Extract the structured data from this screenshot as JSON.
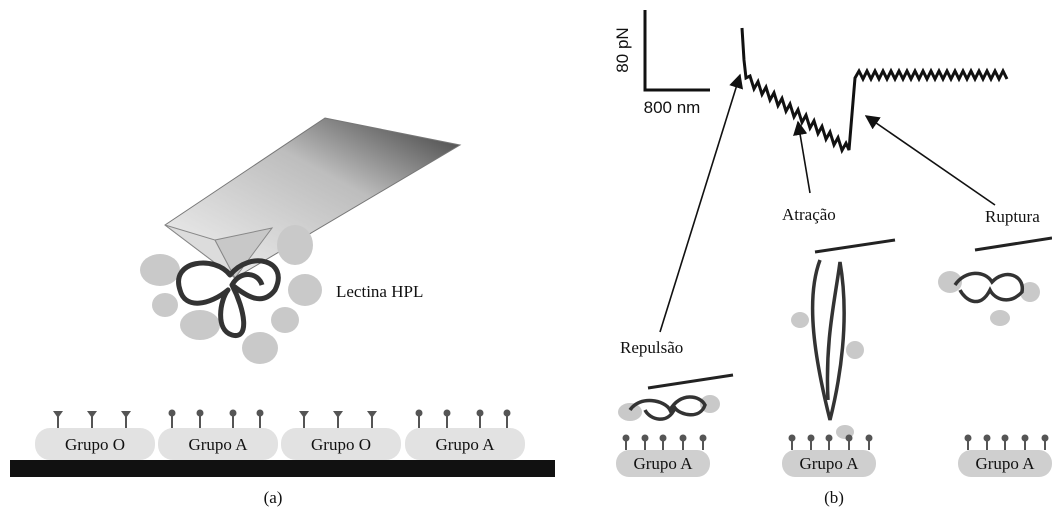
{
  "panel_a": {
    "protein_label": "Lectina HPL",
    "groups": [
      "Grupo O",
      "Grupo A",
      "Grupo O",
      "Grupo A"
    ],
    "caption": "(a)"
  },
  "panel_b": {
    "scale_force": "80 pN",
    "scale_distance": "800 nm",
    "repulsion": "Repulsão",
    "attraction": "Atração",
    "rupture": "Ruptura",
    "groups": [
      "Grupo A",
      "Grupo A",
      "Grupo A"
    ],
    "caption": "(b)"
  }
}
